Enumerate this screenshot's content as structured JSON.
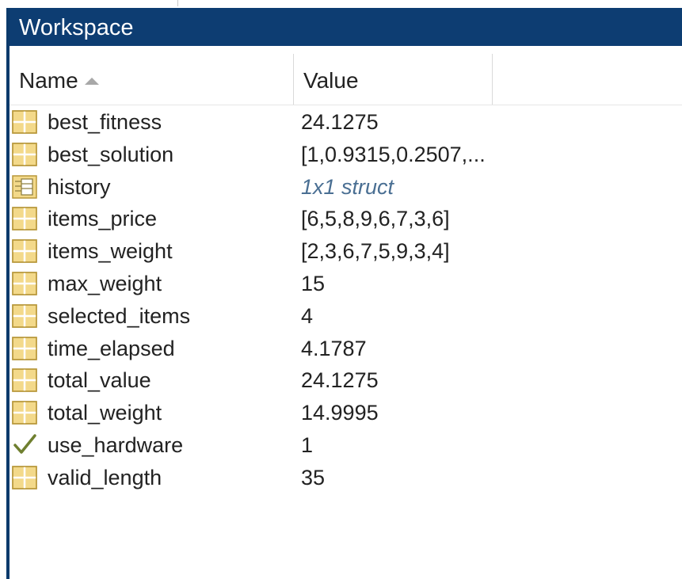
{
  "window": {
    "title": "Workspace"
  },
  "columns": {
    "name_label": "Name",
    "value_label": "Value"
  },
  "colors": {
    "titlebar": "#0d3d72",
    "struct_value": "#4a6f93"
  },
  "variables": [
    {
      "name": "best_fitness",
      "value": "24.1275",
      "icon": "matrix-icon"
    },
    {
      "name": "best_solution",
      "value": "[1,0.9315,0.2507,...",
      "icon": "matrix-icon"
    },
    {
      "name": "history",
      "value": "1x1 struct",
      "icon": "struct-icon"
    },
    {
      "name": "items_price",
      "value": "[6,5,8,9,6,7,3,6]",
      "icon": "matrix-icon"
    },
    {
      "name": "items_weight",
      "value": "[2,3,6,7,5,9,3,4]",
      "icon": "matrix-icon"
    },
    {
      "name": "max_weight",
      "value": "15",
      "icon": "matrix-icon"
    },
    {
      "name": "selected_items",
      "value": "4",
      "icon": "matrix-icon"
    },
    {
      "name": "time_elapsed",
      "value": "4.1787",
      "icon": "matrix-icon"
    },
    {
      "name": "total_value",
      "value": "24.1275",
      "icon": "matrix-icon"
    },
    {
      "name": "total_weight",
      "value": "14.9995",
      "icon": "matrix-icon"
    },
    {
      "name": "use_hardware",
      "value": "1",
      "icon": "logical-check-icon"
    },
    {
      "name": "valid_length",
      "value": "35",
      "icon": "matrix-icon"
    }
  ]
}
